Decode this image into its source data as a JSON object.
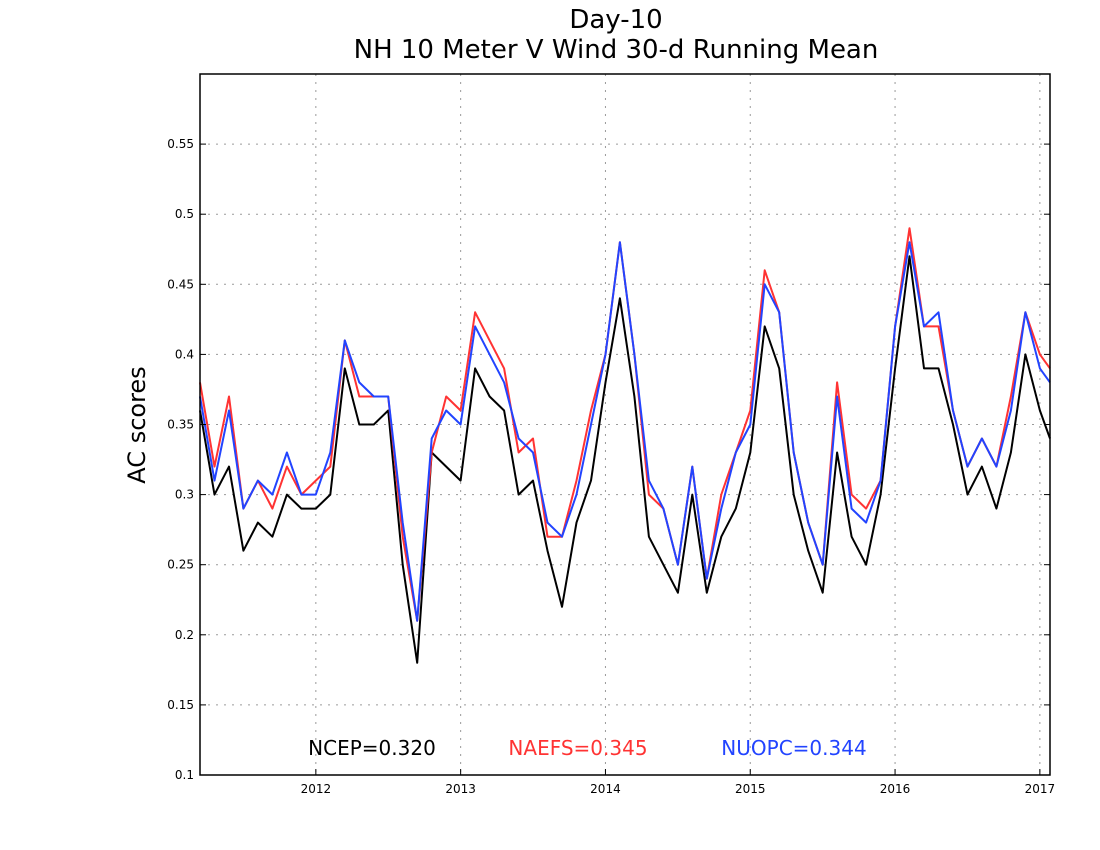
{
  "chart_data": {
    "type": "line",
    "title": "Day-10",
    "subtitle": "NH 10 Meter V Wind 30-d Running Mean",
    "xlabel": "",
    "ylabel": "AC scores",
    "xlim": [
      2011.2,
      2017.07
    ],
    "ylim": [
      0.1,
      0.6
    ],
    "x_ticks": [
      2012,
      2013,
      2014,
      2015,
      2016,
      2017
    ],
    "x_tick_labels": [
      "2012",
      "2013",
      "2014",
      "2015",
      "2016",
      "2017"
    ],
    "y_ticks": [
      0.1,
      0.15,
      0.2,
      0.25,
      0.3,
      0.35,
      0.4,
      0.45,
      0.5,
      0.55
    ],
    "y_tick_labels": [
      "0.1",
      "0.15",
      "0.2",
      "0.25",
      "0.3",
      "0.35",
      "0.4",
      "0.45",
      "0.5",
      "0.55"
    ],
    "grid": true,
    "annotations": [
      {
        "text": "NCEP=0.320",
        "color": "#000000"
      },
      {
        "text": "NAEFS=0.345",
        "color": "#ff3333"
      },
      {
        "text": "NUOPC=0.344",
        "color": "#2244ff"
      }
    ],
    "x": [
      2011.2,
      2011.3,
      2011.4,
      2011.5,
      2011.6,
      2011.7,
      2011.8,
      2011.9,
      2012.0,
      2012.1,
      2012.2,
      2012.3,
      2012.4,
      2012.5,
      2012.6,
      2012.7,
      2012.8,
      2012.9,
      2013.0,
      2013.1,
      2013.2,
      2013.3,
      2013.4,
      2013.5,
      2013.6,
      2013.7,
      2013.8,
      2013.9,
      2014.0,
      2014.1,
      2014.2,
      2014.3,
      2014.4,
      2014.5,
      2014.6,
      2014.7,
      2014.8,
      2014.9,
      2015.0,
      2015.1,
      2015.2,
      2015.3,
      2015.4,
      2015.5,
      2015.6,
      2015.7,
      2015.8,
      2015.9,
      2016.0,
      2016.1,
      2016.2,
      2016.3,
      2016.4,
      2016.5,
      2016.6,
      2016.7,
      2016.8,
      2016.9,
      2017.0,
      2017.07
    ],
    "series": [
      {
        "name": "NCEP",
        "color": "#000000",
        "values": [
          0.36,
          0.3,
          0.32,
          0.26,
          0.28,
          0.27,
          0.3,
          0.29,
          0.29,
          0.3,
          0.39,
          0.35,
          0.35,
          0.36,
          0.25,
          0.18,
          0.33,
          0.32,
          0.31,
          0.39,
          0.37,
          0.36,
          0.3,
          0.31,
          0.26,
          0.22,
          0.28,
          0.31,
          0.38,
          0.44,
          0.37,
          0.27,
          0.25,
          0.23,
          0.3,
          0.23,
          0.27,
          0.29,
          0.33,
          0.42,
          0.39,
          0.3,
          0.26,
          0.23,
          0.33,
          0.27,
          0.25,
          0.3,
          0.39,
          0.47,
          0.39,
          0.39,
          0.35,
          0.3,
          0.32,
          0.29,
          0.33,
          0.4,
          0.36,
          0.34
        ]
      },
      {
        "name": "NAEFS",
        "color": "#ff3333",
        "values": [
          0.38,
          0.32,
          0.37,
          0.29,
          0.31,
          0.29,
          0.32,
          0.3,
          0.31,
          0.32,
          0.41,
          0.37,
          0.37,
          0.37,
          0.27,
          0.21,
          0.33,
          0.37,
          0.36,
          0.43,
          0.41,
          0.39,
          0.33,
          0.34,
          0.27,
          0.27,
          0.31,
          0.36,
          0.4,
          0.48,
          0.4,
          0.3,
          0.29,
          0.25,
          0.32,
          0.24,
          0.3,
          0.33,
          0.36,
          0.46,
          0.43,
          0.33,
          0.28,
          0.25,
          0.38,
          0.3,
          0.29,
          0.31,
          0.42,
          0.49,
          0.42,
          0.42,
          0.36,
          0.32,
          0.34,
          0.32,
          0.37,
          0.43,
          0.4,
          0.39
        ]
      },
      {
        "name": "NUOPC",
        "color": "#2244ff",
        "values": [
          0.37,
          0.31,
          0.36,
          0.29,
          0.31,
          0.3,
          0.33,
          0.3,
          0.3,
          0.33,
          0.41,
          0.38,
          0.37,
          0.37,
          0.28,
          0.21,
          0.34,
          0.36,
          0.35,
          0.42,
          0.4,
          0.38,
          0.34,
          0.33,
          0.28,
          0.27,
          0.3,
          0.35,
          0.4,
          0.48,
          0.4,
          0.31,
          0.29,
          0.25,
          0.32,
          0.24,
          0.29,
          0.33,
          0.35,
          0.45,
          0.43,
          0.33,
          0.28,
          0.25,
          0.37,
          0.29,
          0.28,
          0.31,
          0.42,
          0.48,
          0.42,
          0.43,
          0.36,
          0.32,
          0.34,
          0.32,
          0.36,
          0.43,
          0.39,
          0.38
        ]
      }
    ]
  }
}
